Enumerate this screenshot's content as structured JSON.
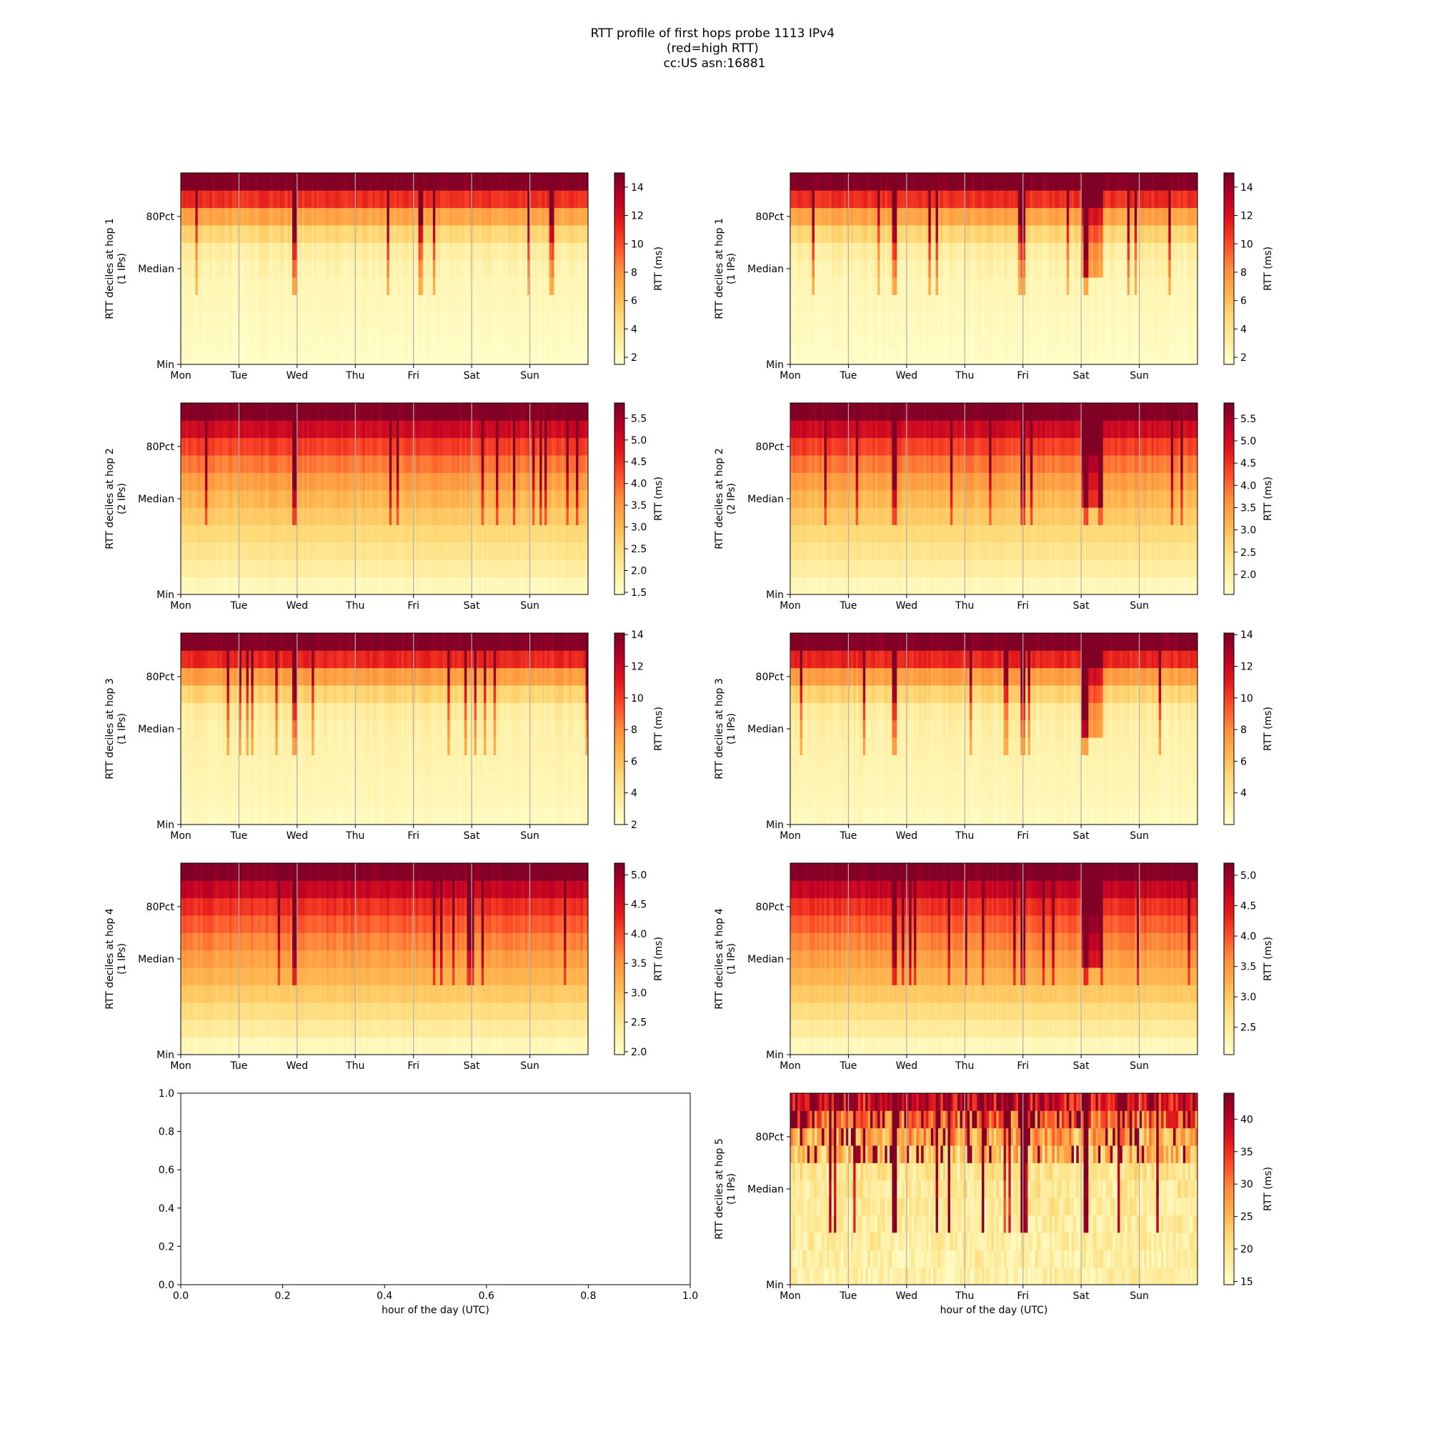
{
  "figure": {
    "title_lines": [
      "RTT profile of first hops probe 1113 IPv4",
      "(red=high RTT)",
      "cc:US asn:16881"
    ]
  },
  "colormap": [
    "#ffffcc",
    "#ffeda0",
    "#fed976",
    "#feb24c",
    "#fd8d3c",
    "#fc4e2a",
    "#e31a1c",
    "#bd0026",
    "#800026"
  ],
  "chart_data": [
    {
      "type": "heatmap",
      "panel": "hop1-left",
      "ylabel_lines": [
        "RTT deciles at hop 1",
        "(1 IPs)"
      ],
      "y_ticks": [
        "Min",
        "Median",
        "80Pct"
      ],
      "x_ticks": [
        "Mon",
        "Tue",
        "Wed",
        "Thu",
        "Fri",
        "Sat",
        "Sun"
      ],
      "colorbar": {
        "label": "RTT (ms)",
        "ticks": [
          "2",
          "4",
          "6",
          "8",
          "10",
          "12",
          "14"
        ],
        "range": [
          1.5,
          15
        ]
      }
    },
    {
      "type": "heatmap",
      "panel": "hop1-right",
      "ylabel_lines": [
        "RTT deciles at hop 1",
        "(1 IPs)"
      ],
      "y_ticks": [
        "Min",
        "Median",
        "80Pct"
      ],
      "x_ticks": [
        "Mon",
        "Tue",
        "Wed",
        "Thu",
        "Fri",
        "Sat",
        "Sun"
      ],
      "colorbar": {
        "label": "RTT (ms)",
        "ticks": [
          "2",
          "4",
          "6",
          "8",
          "10",
          "12",
          "14"
        ],
        "range": [
          1.5,
          15
        ]
      }
    },
    {
      "type": "heatmap",
      "panel": "hop2-left",
      "ylabel_lines": [
        "RTT deciles at hop 2",
        "(2 IPs)"
      ],
      "y_ticks": [
        "Min",
        "Median",
        "80Pct"
      ],
      "x_ticks": [
        "Mon",
        "Tue",
        "Wed",
        "Thu",
        "Fri",
        "Sat",
        "Sun"
      ],
      "colorbar": {
        "label": "RTT (ms)",
        "ticks": [
          "1.5",
          "2.0",
          "2.5",
          "3.0",
          "3.5",
          "4.0",
          "4.5",
          "5.0",
          "5.5"
        ],
        "range": [
          1.45,
          5.85
        ]
      }
    },
    {
      "type": "heatmap",
      "panel": "hop2-right",
      "ylabel_lines": [
        "RTT deciles at hop 2",
        "(2 IPs)"
      ],
      "y_ticks": [
        "Min",
        "Median",
        "80Pct"
      ],
      "x_ticks": [
        "Mon",
        "Tue",
        "Wed",
        "Thu",
        "Fri",
        "Sat",
        "Sun"
      ],
      "colorbar": {
        "label": "RTT (ms)",
        "ticks": [
          "2.0",
          "2.5",
          "3.0",
          "3.5",
          "4.0",
          "4.5",
          "5.0",
          "5.5"
        ],
        "range": [
          1.55,
          5.85
        ]
      }
    },
    {
      "type": "heatmap",
      "panel": "hop3-left",
      "ylabel_lines": [
        "RTT deciles at hop 3",
        "(1 IPs)"
      ],
      "y_ticks": [
        "Min",
        "Median",
        "80Pct"
      ],
      "x_ticks": [
        "Mon",
        "Tue",
        "Wed",
        "Thu",
        "Fri",
        "Sat",
        "Sun"
      ],
      "colorbar": {
        "label": "RTT (ms)",
        "ticks": [
          "2",
          "4",
          "6",
          "8",
          "10",
          "12",
          "14"
        ],
        "range": [
          2,
          14.1
        ]
      }
    },
    {
      "type": "heatmap",
      "panel": "hop3-right",
      "ylabel_lines": [
        "RTT deciles at hop 3",
        "(1 IPs)"
      ],
      "y_ticks": [
        "Min",
        "Median",
        "80Pct"
      ],
      "x_ticks": [
        "Mon",
        "Tue",
        "Wed",
        "Thu",
        "Fri",
        "Sat",
        "Sun"
      ],
      "colorbar": {
        "label": "RTT (ms)",
        "ticks": [
          "4",
          "6",
          "8",
          "10",
          "12",
          "14"
        ],
        "range": [
          2,
          14.1
        ]
      }
    },
    {
      "type": "heatmap",
      "panel": "hop4-left",
      "ylabel_lines": [
        "RTT deciles at hop 4",
        "(1 IPs)"
      ],
      "y_ticks": [
        "Min",
        "Median",
        "80Pct"
      ],
      "x_ticks": [
        "Mon",
        "Tue",
        "Wed",
        "Thu",
        "Fri",
        "Sat",
        "Sun"
      ],
      "colorbar": {
        "label": "RTT (ms)",
        "ticks": [
          "2.0",
          "2.5",
          "3.0",
          "3.5",
          "4.0",
          "4.5",
          "5.0"
        ],
        "range": [
          1.95,
          5.2
        ]
      }
    },
    {
      "type": "heatmap",
      "panel": "hop4-right",
      "ylabel_lines": [
        "RTT deciles at hop 4",
        "(1 IPs)"
      ],
      "y_ticks": [
        "Min",
        "Median",
        "80Pct"
      ],
      "x_ticks": [
        "Mon",
        "Tue",
        "Wed",
        "Thu",
        "Fri",
        "Sat",
        "Sun"
      ],
      "colorbar": {
        "label": "RTT (ms)",
        "ticks": [
          "2.5",
          "3.0",
          "3.5",
          "4.0",
          "4.5",
          "5.0"
        ],
        "range": [
          2.05,
          5.2
        ]
      }
    },
    {
      "type": "empty",
      "panel": "empty-axes",
      "xlabel": "hour of the day (UTC)",
      "x_ticks": [
        "0.0",
        "0.2",
        "0.4",
        "0.6",
        "0.8",
        "1.0"
      ],
      "y_ticks": [
        "0.0",
        "0.2",
        "0.4",
        "0.6",
        "0.8",
        "1.0"
      ],
      "xlim": [
        0,
        1
      ],
      "ylim": [
        0,
        1
      ]
    },
    {
      "type": "heatmap",
      "panel": "hop5-right",
      "ylabel_lines": [
        "RTT deciles at hop 5",
        "(1 IPs)"
      ],
      "xlabel": "hour of the day (UTC)",
      "y_ticks": [
        "Min",
        "Median",
        "80Pct"
      ],
      "x_ticks": [
        "Mon",
        "Tue",
        "Wed",
        "Thu",
        "Fri",
        "Sat",
        "Sun"
      ],
      "colorbar": {
        "label": "RTT (ms)",
        "ticks": [
          "15",
          "20",
          "25",
          "30",
          "35",
          "40"
        ],
        "range": [
          14.5,
          44
        ]
      }
    }
  ]
}
